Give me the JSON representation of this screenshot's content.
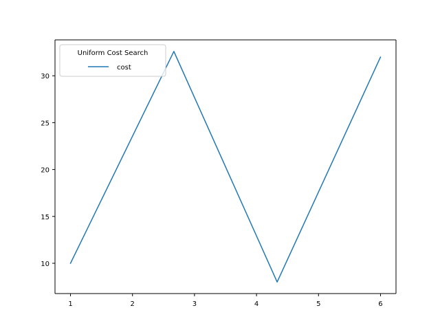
{
  "chart_data": {
    "type": "line",
    "title": "",
    "xlabel": "",
    "ylabel": "",
    "xlim": [
      0.75,
      6.25
    ],
    "ylim": [
      6.77,
      33.83
    ],
    "x_ticks": [
      1,
      2,
      3,
      4,
      5,
      6
    ],
    "y_ticks": [
      10,
      15,
      20,
      25,
      30
    ],
    "grid": false,
    "legend": {
      "title": "Uniform Cost Search",
      "placement": "top-left"
    },
    "series": [
      {
        "name": "cost",
        "color": "#1f77b4",
        "x": [
          1,
          2.667,
          4.333,
          6
        ],
        "y": [
          10,
          32.6,
          8,
          32
        ]
      }
    ]
  }
}
